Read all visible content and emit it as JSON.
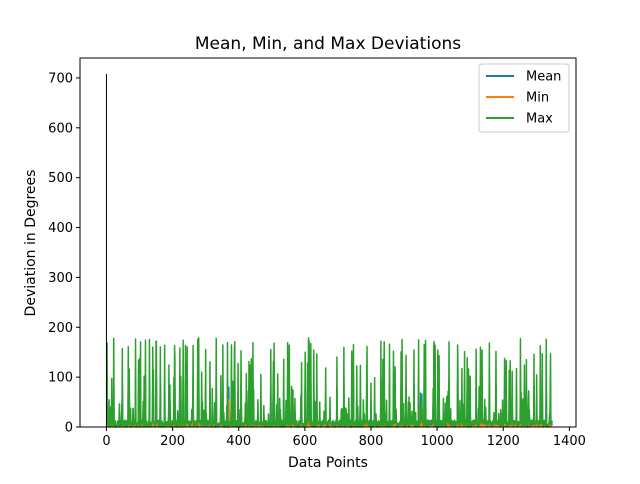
{
  "chart_data": {
    "type": "line",
    "title": "Mean, Min, and Max Deviations",
    "xlabel": "Data Points",
    "ylabel": "Deviation in Degrees",
    "xlim": [
      -80,
      1420
    ],
    "ylim": [
      0,
      740
    ],
    "xticks": [
      0,
      200,
      400,
      600,
      800,
      1000,
      1200,
      1400
    ],
    "yticks": [
      0,
      100,
      200,
      300,
      400,
      500,
      600,
      700
    ],
    "grid": false,
    "legend_position": "top-right",
    "series": [
      {
        "name": "Mean",
        "color": "#1f77b4"
      },
      {
        "name": "Min",
        "color": "#ff7f0e"
      },
      {
        "name": "Max",
        "color": "#2ca02c"
      }
    ],
    "peak": {
      "x": 0,
      "y": 708
    },
    "x_extent": [
      0,
      1348
    ],
    "notes_visible": "Max series oscillates mostly between 0 and ~180; Mean and Min hidden mostly beneath Max with small visible spikes near x≈262, 370, 950, 1100"
  }
}
